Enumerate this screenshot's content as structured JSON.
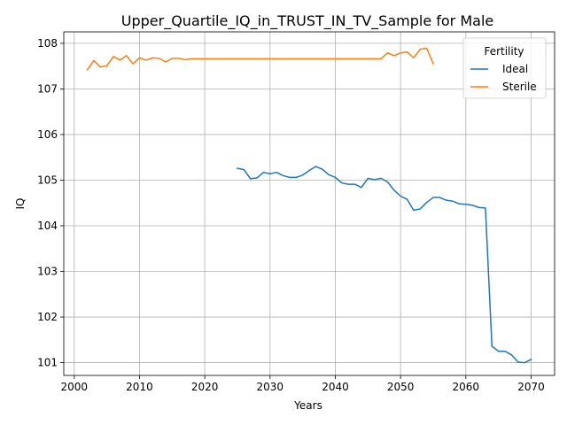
{
  "chart_data": {
    "type": "line",
    "title": "Upper_Quartile_IQ_in_TRUST_IN_TV_Sample for Male",
    "xlabel": "Years",
    "ylabel": "IQ",
    "xlim": [
      2000,
      2070
    ],
    "ylim": [
      101,
      108
    ],
    "xticks": [
      2000,
      2010,
      2020,
      2030,
      2040,
      2050,
      2060,
      2070
    ],
    "yticks": [
      101,
      102,
      103,
      104,
      105,
      106,
      107,
      108
    ],
    "grid": true,
    "legend": {
      "title": "Fertility",
      "placement": "top-right"
    },
    "series": [
      {
        "name": "Ideal",
        "color": "#1f77b4",
        "x": [
          2025,
          2026,
          2027,
          2028,
          2029,
          2030,
          2031,
          2032,
          2033,
          2034,
          2035,
          2036,
          2037,
          2038,
          2039,
          2040,
          2041,
          2042,
          2043,
          2044,
          2045,
          2046,
          2047,
          2048,
          2049,
          2050,
          2051,
          2052,
          2053,
          2054,
          2055,
          2056,
          2057,
          2058,
          2059,
          2060,
          2061,
          2062,
          2063,
          2064,
          2065,
          2066,
          2067,
          2068,
          2069,
          2070
        ],
        "y": [
          105.26,
          105.23,
          105.03,
          105.05,
          105.17,
          105.14,
          105.17,
          105.1,
          105.06,
          105.06,
          105.11,
          105.21,
          105.3,
          105.24,
          105.12,
          105.06,
          104.94,
          104.91,
          104.91,
          104.84,
          105.04,
          105.01,
          105.04,
          104.96,
          104.78,
          104.65,
          104.58,
          104.34,
          104.37,
          104.51,
          104.62,
          104.62,
          104.56,
          104.54,
          104.48,
          104.47,
          104.45,
          104.4,
          104.39,
          101.36,
          101.25,
          101.25,
          101.17,
          101.01,
          101.0,
          101.07
        ]
      },
      {
        "name": "Sterile",
        "color": "#ff7f0e",
        "x": [
          2002,
          2003,
          2004,
          2005,
          2006,
          2007,
          2008,
          2009,
          2010,
          2011,
          2012,
          2013,
          2014,
          2015,
          2016,
          2017,
          2018,
          2019,
          2020,
          2021,
          2022,
          2023,
          2024,
          2025,
          2026,
          2027,
          2028,
          2029,
          2030,
          2031,
          2032,
          2033,
          2034,
          2035,
          2036,
          2037,
          2038,
          2039,
          2040,
          2041,
          2042,
          2043,
          2044,
          2045,
          2046,
          2047,
          2048,
          2049,
          2050,
          2051,
          2052,
          2053,
          2054,
          2055
        ],
        "y": [
          107.42,
          107.62,
          107.48,
          107.51,
          107.71,
          107.63,
          107.73,
          107.55,
          107.68,
          107.63,
          107.68,
          107.67,
          107.59,
          107.67,
          107.67,
          107.64,
          107.66,
          107.66,
          107.66,
          107.66,
          107.66,
          107.66,
          107.66,
          107.66,
          107.66,
          107.66,
          107.66,
          107.66,
          107.66,
          107.66,
          107.66,
          107.66,
          107.66,
          107.66,
          107.66,
          107.66,
          107.66,
          107.66,
          107.66,
          107.66,
          107.66,
          107.66,
          107.66,
          107.66,
          107.66,
          107.66,
          107.79,
          107.73,
          107.79,
          107.81,
          107.68,
          107.87,
          107.89,
          107.55
        ]
      }
    ]
  }
}
